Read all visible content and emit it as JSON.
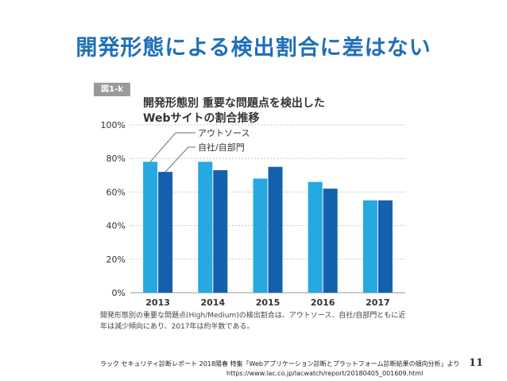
{
  "slide": {
    "title": "開発形態による検出割合に差はない",
    "page_number": "11",
    "footer_source": "ラック セキュリティ診断レポート 2018陽春 特集「Webアプリケーション診断とプラットフォーム診断結果の傾向分析」より",
    "footer_url": "https://www.lac.co.jp/lacwatch/report/20180405_001609.html"
  },
  "figure": {
    "badge": "図1-k",
    "title_line1": "開発形態別 重要な問題点を検出した",
    "title_line2": "Webサイトの割合推移",
    "note": "開発形態別の重要な問題点(High/Medium)の検出割合は、アウトソース、自社/自部門ともに近年は減少傾向にあり、2017年は約半数である。"
  },
  "colors": {
    "outsource": "#25a9e0",
    "inhouse": "#1560ad",
    "title": "#1f6fb8"
  },
  "chart_data": {
    "type": "bar",
    "categories": [
      "2013",
      "2014",
      "2015",
      "2016",
      "2017"
    ],
    "series": [
      {
        "name": "アウトソース",
        "values": [
          78,
          78,
          68,
          66,
          55
        ]
      },
      {
        "name": "自社/自部門",
        "values": [
          72,
          73,
          75,
          62,
          55
        ]
      }
    ],
    "ylim": [
      0,
      100
    ],
    "yticks": [
      0,
      20,
      40,
      60,
      80,
      100
    ],
    "ytick_labels": [
      "0%",
      "20%",
      "40%",
      "60%",
      "80%",
      "100%"
    ],
    "grid": true,
    "legend": "callout-top-left"
  }
}
